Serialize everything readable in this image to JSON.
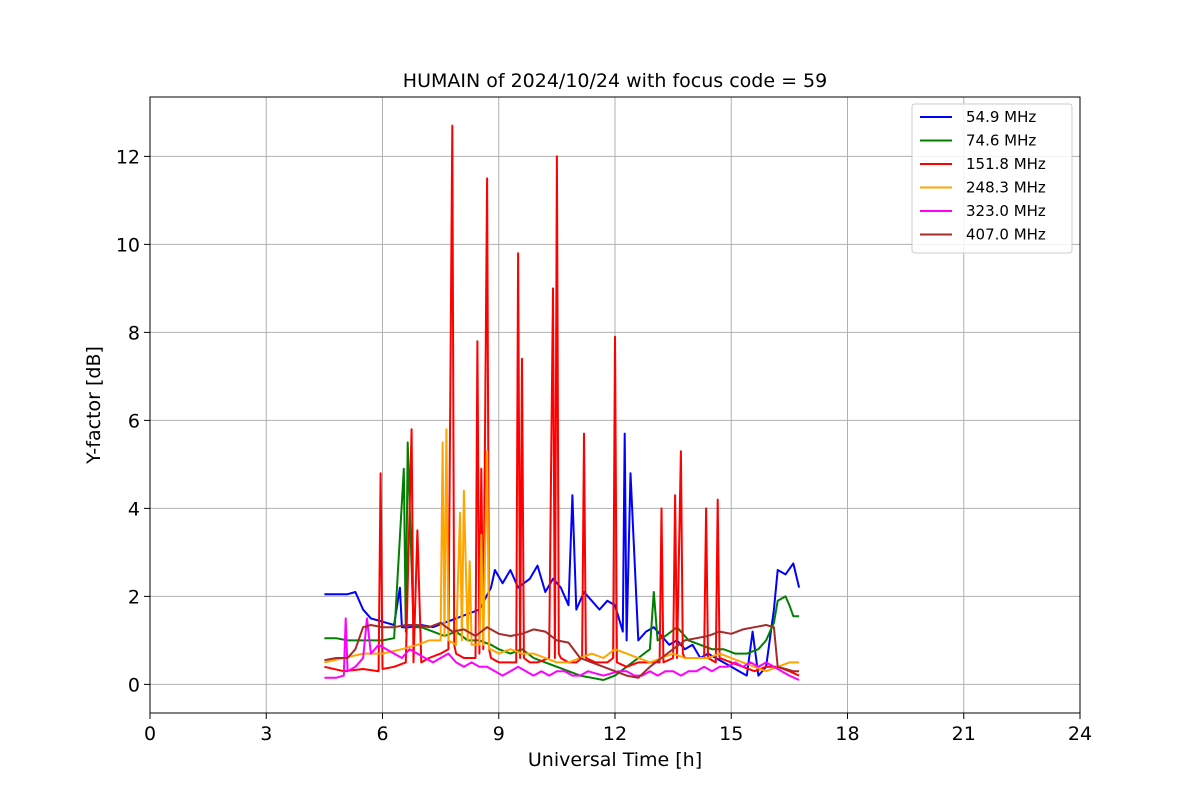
{
  "chart_data": {
    "type": "line",
    "title": "HUMAIN of 2024/10/24 with focus code = 59",
    "xlabel": "Universal Time [h]",
    "ylabel": "Y-factor [dB]",
    "xlim": [
      0,
      24
    ],
    "ylim": [
      -0.65,
      13.35
    ],
    "xticks": [
      0,
      3,
      6,
      9,
      12,
      15,
      18,
      21,
      24
    ],
    "yticks": [
      0,
      2,
      4,
      6,
      8,
      10,
      12
    ],
    "grid": true,
    "legend_position": "top-right",
    "series": [
      {
        "name": " 54.9 MHz",
        "color": "#0000ff",
        "x": [
          4.5,
          4.8,
          5.1,
          5.3,
          5.5,
          5.7,
          5.9,
          6.1,
          6.3,
          6.45,
          6.5,
          6.7,
          7.0,
          7.3,
          7.6,
          7.9,
          8.2,
          8.5,
          8.8,
          8.9,
          9.1,
          9.3,
          9.5,
          9.8,
          10.0,
          10.2,
          10.4,
          10.6,
          10.8,
          10.9,
          11.0,
          11.2,
          11.4,
          11.6,
          11.8,
          12.0,
          12.2,
          12.25,
          12.3,
          12.4,
          12.6,
          12.8,
          13.0,
          13.2,
          13.4,
          13.6,
          13.8,
          14.0,
          14.2,
          14.4,
          14.6,
          14.8,
          15.0,
          15.2,
          15.4,
          15.55,
          15.7,
          15.9,
          16.1,
          16.2,
          16.4,
          16.6,
          16.75
        ],
        "y": [
          2.05,
          2.05,
          2.05,
          2.1,
          1.7,
          1.5,
          1.45,
          1.4,
          1.35,
          2.2,
          1.3,
          1.3,
          1.35,
          1.3,
          1.4,
          1.5,
          1.6,
          1.7,
          2.2,
          2.6,
          2.3,
          2.6,
          2.2,
          2.4,
          2.7,
          2.1,
          2.4,
          2.2,
          1.8,
          4.3,
          1.7,
          2.1,
          1.9,
          1.7,
          1.9,
          1.8,
          1.2,
          5.7,
          1.0,
          4.8,
          1.0,
          1.2,
          1.3,
          1.1,
          0.9,
          1.0,
          0.8,
          0.9,
          0.6,
          0.7,
          0.6,
          0.5,
          0.4,
          0.3,
          0.2,
          1.2,
          0.2,
          0.4,
          1.7,
          2.6,
          2.5,
          2.75,
          2.2
        ]
      },
      {
        "name": " 74.6 MHz",
        "color": "#008000",
        "x": [
          4.5,
          4.8,
          5.1,
          5.4,
          5.7,
          6.0,
          6.3,
          6.55,
          6.6,
          6.65,
          6.8,
          7.0,
          7.3,
          7.6,
          7.9,
          8.2,
          8.5,
          8.8,
          9.0,
          9.3,
          9.6,
          9.9,
          10.2,
          10.5,
          10.8,
          11.1,
          11.4,
          11.7,
          12.0,
          12.3,
          12.6,
          12.9,
          13.0,
          13.1,
          13.3,
          13.6,
          13.9,
          14.2,
          14.5,
          14.8,
          15.1,
          15.4,
          15.7,
          15.9,
          16.1,
          16.2,
          16.4,
          16.5,
          16.6,
          16.75
        ],
        "y": [
          1.05,
          1.05,
          1.0,
          1.0,
          1.0,
          1.0,
          1.05,
          4.9,
          1.2,
          5.5,
          1.3,
          1.3,
          1.2,
          1.1,
          1.2,
          1.0,
          1.0,
          0.9,
          0.8,
          0.7,
          0.8,
          0.6,
          0.5,
          0.4,
          0.3,
          0.2,
          0.15,
          0.1,
          0.2,
          0.4,
          0.6,
          0.8,
          2.1,
          1.0,
          1.1,
          1.3,
          1.0,
          0.9,
          0.8,
          0.8,
          0.7,
          0.7,
          0.8,
          1.0,
          1.4,
          1.9,
          2.0,
          1.8,
          1.55,
          1.55
        ]
      },
      {
        "name": "151.8 MHz",
        "color": "#ff0000",
        "x": [
          4.5,
          5.0,
          5.5,
          5.9,
          5.95,
          6.0,
          6.3,
          6.6,
          6.75,
          6.8,
          6.9,
          7.0,
          7.2,
          7.5,
          7.7,
          7.8,
          7.85,
          7.9,
          8.1,
          8.4,
          8.45,
          8.5,
          8.55,
          8.6,
          8.7,
          8.75,
          8.8,
          9.0,
          9.2,
          9.45,
          9.5,
          9.55,
          9.6,
          9.65,
          9.8,
          10.0,
          10.3,
          10.4,
          10.45,
          10.5,
          10.55,
          10.6,
          10.8,
          11.0,
          11.15,
          11.2,
          11.25,
          11.5,
          11.8,
          11.95,
          12.0,
          12.05,
          12.3,
          12.6,
          12.9,
          13.15,
          13.2,
          13.25,
          13.5,
          13.55,
          13.6,
          13.7,
          13.75,
          13.8,
          14.0,
          14.3,
          14.35,
          14.4,
          14.6,
          14.65,
          14.7,
          15.0,
          15.3,
          15.6,
          15.9,
          16.2,
          16.5,
          16.75
        ],
        "y": [
          0.4,
          0.3,
          0.35,
          0.3,
          4.8,
          0.35,
          0.4,
          0.5,
          5.8,
          0.5,
          3.5,
          0.5,
          0.6,
          0.7,
          0.8,
          12.7,
          0.9,
          0.7,
          0.6,
          0.6,
          7.8,
          0.7,
          4.9,
          0.8,
          11.5,
          0.8,
          0.6,
          0.5,
          0.5,
          0.5,
          9.8,
          0.6,
          7.4,
          0.6,
          0.5,
          0.5,
          0.6,
          9.0,
          0.6,
          12.0,
          0.7,
          0.6,
          0.5,
          0.5,
          0.6,
          5.7,
          0.6,
          0.5,
          0.5,
          0.6,
          7.9,
          0.5,
          0.4,
          0.5,
          0.5,
          0.5,
          4.0,
          0.5,
          0.6,
          4.3,
          0.6,
          5.3,
          0.7,
          0.6,
          0.6,
          0.6,
          4.0,
          0.6,
          0.5,
          4.2,
          0.6,
          0.5,
          0.4,
          0.3,
          0.4,
          0.4,
          0.3,
          0.2
        ]
      },
      {
        "name": "248.3 MHz",
        "color": "#ffa500",
        "x": [
          4.5,
          5.0,
          5.5,
          6.0,
          6.5,
          6.9,
          7.2,
          7.5,
          7.55,
          7.6,
          7.65,
          7.7,
          7.9,
          8.0,
          8.05,
          8.1,
          8.2,
          8.25,
          8.3,
          8.5,
          8.55,
          8.6,
          8.7,
          8.75,
          8.8,
          9.0,
          9.3,
          9.6,
          9.9,
          10.2,
          10.5,
          10.8,
          11.1,
          11.4,
          11.7,
          12.0,
          12.3,
          12.6,
          12.9,
          13.2,
          13.5,
          13.8,
          14.1,
          14.4,
          14.7,
          15.0,
          15.3,
          15.6,
          15.9,
          16.2,
          16.5,
          16.75
        ],
        "y": [
          0.5,
          0.6,
          0.7,
          0.7,
          0.8,
          0.9,
          1.0,
          1.0,
          5.5,
          1.1,
          5.8,
          1.0,
          0.9,
          3.9,
          1.0,
          4.4,
          1.0,
          2.8,
          0.9,
          0.9,
          3.4,
          0.9,
          5.3,
          0.8,
          0.8,
          0.7,
          0.8,
          0.7,
          0.7,
          0.6,
          0.5,
          0.5,
          0.6,
          0.7,
          0.6,
          0.8,
          0.7,
          0.6,
          0.5,
          0.6,
          0.7,
          0.6,
          0.6,
          0.6,
          0.7,
          0.6,
          0.5,
          0.4,
          0.3,
          0.4,
          0.5,
          0.5
        ]
      },
      {
        "name": "323.0 MHz",
        "color": "#ff00ff",
        "x": [
          4.5,
          4.8,
          5.0,
          5.05,
          5.1,
          5.3,
          5.5,
          5.6,
          5.7,
          5.9,
          6.1,
          6.3,
          6.5,
          6.7,
          6.9,
          7.1,
          7.3,
          7.5,
          7.7,
          7.9,
          8.1,
          8.3,
          8.5,
          8.7,
          8.9,
          9.1,
          9.3,
          9.5,
          9.7,
          9.9,
          10.1,
          10.3,
          10.5,
          10.7,
          10.9,
          11.1,
          11.3,
          11.5,
          11.7,
          11.9,
          12.1,
          12.3,
          12.5,
          12.7,
          12.9,
          13.1,
          13.3,
          13.5,
          13.7,
          13.9,
          14.1,
          14.3,
          14.5,
          14.7,
          14.9,
          15.1,
          15.3,
          15.5,
          15.7,
          15.9,
          16.1,
          16.3,
          16.5,
          16.75
        ],
        "y": [
          0.15,
          0.15,
          0.2,
          1.5,
          0.3,
          0.4,
          0.6,
          1.5,
          0.7,
          0.9,
          0.8,
          0.7,
          0.6,
          0.8,
          0.7,
          0.6,
          0.5,
          0.6,
          0.7,
          0.5,
          0.4,
          0.5,
          0.4,
          0.4,
          0.3,
          0.2,
          0.3,
          0.4,
          0.3,
          0.2,
          0.3,
          0.2,
          0.3,
          0.3,
          0.2,
          0.2,
          0.3,
          0.25,
          0.2,
          0.25,
          0.3,
          0.3,
          0.2,
          0.2,
          0.3,
          0.2,
          0.3,
          0.3,
          0.2,
          0.3,
          0.3,
          0.4,
          0.3,
          0.4,
          0.4,
          0.5,
          0.4,
          0.5,
          0.4,
          0.5,
          0.4,
          0.3,
          0.2,
          0.1
        ]
      },
      {
        "name": "407.0 MHz",
        "color": "#a52a2a",
        "x": [
          4.5,
          4.8,
          5.1,
          5.3,
          5.5,
          5.7,
          6.0,
          6.3,
          6.6,
          6.9,
          7.2,
          7.5,
          7.8,
          8.1,
          8.4,
          8.7,
          9.0,
          9.3,
          9.6,
          9.9,
          10.2,
          10.5,
          10.8,
          11.1,
          11.4,
          11.7,
          12.0,
          12.3,
          12.6,
          12.9,
          13.2,
          13.5,
          13.8,
          14.1,
          14.4,
          14.7,
          15.0,
          15.3,
          15.6,
          15.9,
          16.1,
          16.2,
          16.4,
          16.6,
          16.75
        ],
        "y": [
          0.55,
          0.6,
          0.6,
          0.8,
          1.3,
          1.35,
          1.3,
          1.3,
          1.35,
          1.35,
          1.3,
          1.4,
          1.2,
          1.25,
          1.1,
          1.3,
          1.15,
          1.1,
          1.15,
          1.25,
          1.2,
          1.0,
          0.95,
          0.6,
          0.5,
          0.4,
          0.3,
          0.2,
          0.15,
          0.4,
          0.6,
          0.8,
          1.0,
          1.05,
          1.1,
          1.2,
          1.15,
          1.25,
          1.3,
          1.35,
          1.3,
          0.4,
          0.35,
          0.3,
          0.3
        ]
      }
    ]
  }
}
